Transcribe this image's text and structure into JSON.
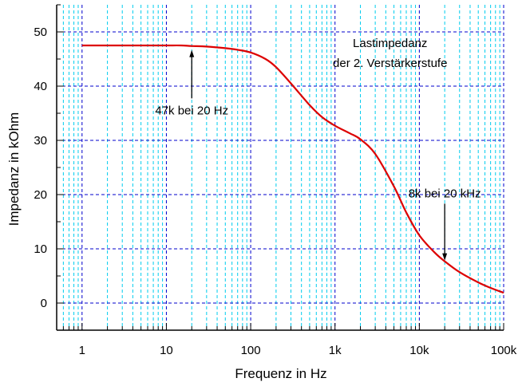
{
  "chart_data": {
    "type": "line",
    "title": "",
    "xlabel": "Frequenz in Hz",
    "ylabel": "Impedanz in kOhm",
    "xscale": "log",
    "xlim": [
      0.5,
      100000
    ],
    "ylim": [
      -5,
      55
    ],
    "grid": true,
    "x_ticks": [
      {
        "value": 1,
        "label": "1"
      },
      {
        "value": 10,
        "label": "10"
      },
      {
        "value": 100,
        "label": "100"
      },
      {
        "value": 1000,
        "label": "1k"
      },
      {
        "value": 10000,
        "label": "10k"
      },
      {
        "value": 100000,
        "label": "100k"
      }
    ],
    "y_ticks": [
      {
        "value": 0,
        "label": "0"
      },
      {
        "value": 10,
        "label": "10"
      },
      {
        "value": 20,
        "label": "20"
      },
      {
        "value": 30,
        "label": "30"
      },
      {
        "value": 40,
        "label": "40"
      },
      {
        "value": 50,
        "label": "50"
      }
    ],
    "series": [
      {
        "color": "#dd0000",
        "x": [
          1,
          2,
          5,
          10,
          15,
          20,
          30,
          50,
          70,
          100,
          150,
          200,
          300,
          500,
          700,
          1000,
          1500,
          2000,
          3000,
          5000,
          7000,
          10000,
          15000,
          20000,
          30000,
          50000,
          70000,
          100000
        ],
        "y": [
          47.5,
          47.5,
          47.5,
          47.5,
          47.5,
          47.4,
          47.3,
          47.0,
          46.7,
          46.2,
          45.0,
          43.5,
          40.5,
          36.5,
          34.3,
          32.7,
          31.3,
          30.2,
          27.5,
          21.5,
          16.7,
          12.5,
          9.4,
          7.7,
          5.7,
          3.8,
          2.8,
          1.9
        ]
      }
    ],
    "annotations": [
      {
        "text": "47k bei 20 Hz",
        "target_x": 20,
        "target_y": 47.4,
        "text_x": 20,
        "text_y": 34.8
      },
      {
        "text": "8k bei 20 kHz",
        "target_x": 20000,
        "target_y": 7.7,
        "text_x": 20000,
        "text_y": 19.5
      },
      {
        "text": "Lastimpedanz",
        "text_x": 4500,
        "text_y": 47.2
      },
      {
        "text": "der 2. Verstärkerstufe",
        "text_x": 4500,
        "text_y": 43.5
      }
    ]
  },
  "colors": {
    "axis": "#000000",
    "major_grid": "#0000cc",
    "minor_grid": "#00ccee",
    "line": "#dd0000"
  }
}
